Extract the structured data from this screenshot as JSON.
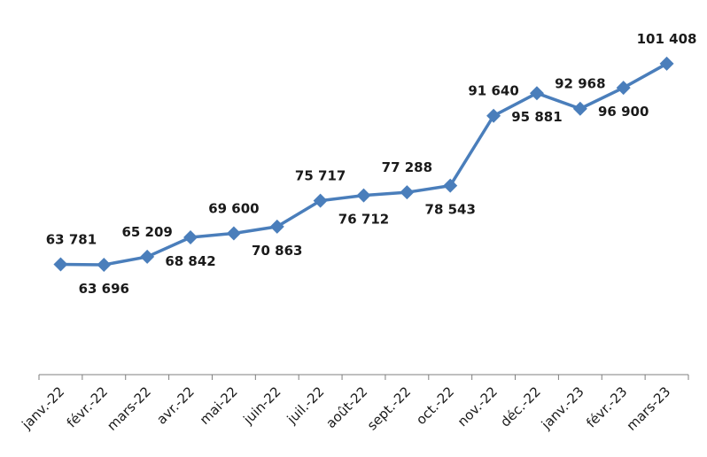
{
  "chart_data": {
    "type": "line",
    "title": "",
    "xlabel": "",
    "ylabel": "",
    "ylim": [
      0,
      105000
    ],
    "grid": false,
    "legend": "none",
    "categories": [
      "janv.-22",
      "févr.-22",
      "mars-22",
      "avr.-22",
      "mai-22",
      "juin-22",
      "juil.-22",
      "août-22",
      "sept.-22",
      "oct.-22",
      "nov.-22",
      "déc.-22",
      "janv.-23",
      "févr.-23",
      "mars-23"
    ],
    "series": [
      {
        "values": [
          63781,
          63696,
          65209,
          68842,
          69600,
          70863,
          75717,
          76712,
          77288,
          78543,
          91640,
          95881,
          92968,
          96900,
          101408
        ],
        "labels": [
          "63 781",
          "63 696",
          "65 209",
          "68 842",
          "69 600",
          "70 863",
          "75 717",
          "76 712",
          "77 288",
          "78 543",
          "91 640",
          "95 881",
          "92 968",
          "96 900",
          "101 408"
        ],
        "label_side": [
          "above",
          "below",
          "above",
          "below",
          "above",
          "below",
          "above",
          "below",
          "above",
          "below",
          "above",
          "below",
          "above",
          "below",
          "above"
        ],
        "color": "#4a7ebb",
        "marker": "diamond"
      }
    ]
  }
}
